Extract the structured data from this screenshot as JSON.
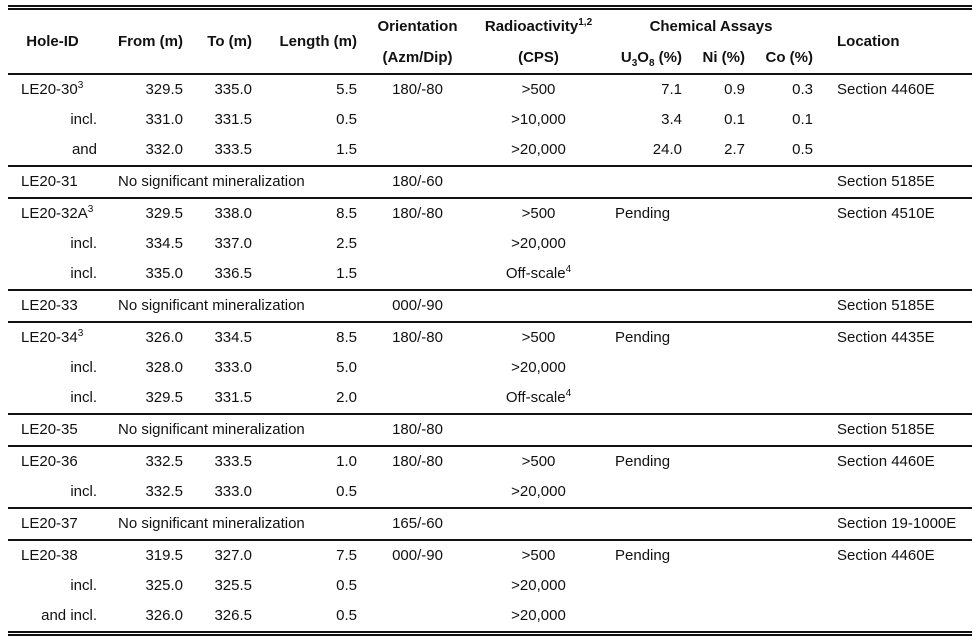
{
  "colors": {
    "background": "#ffffff",
    "text": "#111111",
    "rule": "#111111"
  },
  "table": {
    "headers": {
      "hole_id": "Hole-ID",
      "from": "From (m)",
      "to": "To (m)",
      "length": "Length (m)",
      "orientation_line1": "Orientation",
      "orientation_line2": "(Azm/Dip)",
      "radioactivity": "Radioactivity",
      "radioactivity_sup": "1,2",
      "radioactivity_line2": "(CPS)",
      "chemical_assays": "Chemical Assays",
      "u3o8_u": "U",
      "u3o8_sub3": "3",
      "u3o8_o": "O",
      "u3o8_sub8": "8",
      "u3o8_pct": " (%)",
      "ni": "Ni (%)",
      "co": "Co (%)",
      "location": "Location"
    },
    "rows": [
      {
        "hole": "LE20-30",
        "hole_sup": "3",
        "indent": false,
        "group_start": false,
        "nsm": "",
        "from": "329.5",
        "to": "335.0",
        "length": "5.5",
        "orientation": "180/-80",
        "cps": ">500",
        "cps_sup": "",
        "u3o8": "7.1",
        "pending": false,
        "ni": "0.9",
        "co": "0.3",
        "location": "Section 4460E"
      },
      {
        "hole": "incl.",
        "hole_sup": "",
        "indent": true,
        "group_start": false,
        "nsm": "",
        "from": "331.0",
        "to": "331.5",
        "length": "0.5",
        "orientation": "",
        "cps": ">10,000",
        "cps_sup": "",
        "u3o8": "3.4",
        "pending": false,
        "ni": "0.1",
        "co": "0.1",
        "location": ""
      },
      {
        "hole": "and",
        "hole_sup": "",
        "indent": true,
        "group_start": false,
        "nsm": "",
        "from": "332.0",
        "to": "333.5",
        "length": "1.5",
        "orientation": "",
        "cps": ">20,000",
        "cps_sup": "",
        "u3o8": "24.0",
        "pending": false,
        "ni": "2.7",
        "co": "0.5",
        "location": ""
      },
      {
        "hole": "LE20-31",
        "hole_sup": "",
        "indent": false,
        "group_start": true,
        "nsm": "No significant mineralization",
        "from": "",
        "to": "",
        "length": "",
        "orientation": "180/-60",
        "cps": "",
        "cps_sup": "",
        "u3o8": "",
        "pending": false,
        "ni": "",
        "co": "",
        "location": "Section 5185E"
      },
      {
        "hole": "LE20-32A",
        "hole_sup": "3",
        "indent": false,
        "group_start": true,
        "nsm": "",
        "from": "329.5",
        "to": "338.0",
        "length": "8.5",
        "orientation": "180/-80",
        "cps": ">500",
        "cps_sup": "",
        "u3o8": "Pending",
        "pending": true,
        "ni": "",
        "co": "",
        "location": "Section 4510E"
      },
      {
        "hole": "incl.",
        "hole_sup": "",
        "indent": true,
        "group_start": false,
        "nsm": "",
        "from": "334.5",
        "to": "337.0",
        "length": "2.5",
        "orientation": "",
        "cps": ">20,000",
        "cps_sup": "",
        "u3o8": "",
        "pending": false,
        "ni": "",
        "co": "",
        "location": ""
      },
      {
        "hole": "incl.",
        "hole_sup": "",
        "indent": true,
        "group_start": false,
        "nsm": "",
        "from": "335.0",
        "to": "336.5",
        "length": "1.5",
        "orientation": "",
        "cps": "Off-scale",
        "cps_sup": "4",
        "u3o8": "",
        "pending": false,
        "ni": "",
        "co": "",
        "location": ""
      },
      {
        "hole": "LE20-33",
        "hole_sup": "",
        "indent": false,
        "group_start": true,
        "nsm": "No significant mineralization",
        "from": "",
        "to": "",
        "length": "",
        "orientation": "000/-90",
        "cps": "",
        "cps_sup": "",
        "u3o8": "",
        "pending": false,
        "ni": "",
        "co": "",
        "location": "Section 5185E"
      },
      {
        "hole": "LE20-34",
        "hole_sup": "3",
        "indent": false,
        "group_start": true,
        "nsm": "",
        "from": "326.0",
        "to": "334.5",
        "length": "8.5",
        "orientation": "180/-80",
        "cps": ">500",
        "cps_sup": "",
        "u3o8": "Pending",
        "pending": true,
        "ni": "",
        "co": "",
        "location": "Section 4435E"
      },
      {
        "hole": "incl.",
        "hole_sup": "",
        "indent": true,
        "group_start": false,
        "nsm": "",
        "from": "328.0",
        "to": "333.0",
        "length": "5.0",
        "orientation": "",
        "cps": ">20,000",
        "cps_sup": "",
        "u3o8": "",
        "pending": false,
        "ni": "",
        "co": "",
        "location": ""
      },
      {
        "hole": "incl.",
        "hole_sup": "",
        "indent": true,
        "group_start": false,
        "nsm": "",
        "from": "329.5",
        "to": "331.5",
        "length": "2.0",
        "orientation": "",
        "cps": "Off-scale",
        "cps_sup": "4",
        "u3o8": "",
        "pending": false,
        "ni": "",
        "co": "",
        "location": ""
      },
      {
        "hole": "LE20-35",
        "hole_sup": "",
        "indent": false,
        "group_start": true,
        "nsm": "No significant mineralization",
        "from": "",
        "to": "",
        "length": "",
        "orientation": "180/-80",
        "cps": "",
        "cps_sup": "",
        "u3o8": "",
        "pending": false,
        "ni": "",
        "co": "",
        "location": "Section 5185E"
      },
      {
        "hole": "LE20-36",
        "hole_sup": "",
        "indent": false,
        "group_start": true,
        "nsm": "",
        "from": "332.5",
        "to": "333.5",
        "length": "1.0",
        "orientation": "180/-80",
        "cps": ">500",
        "cps_sup": "",
        "u3o8": "Pending",
        "pending": true,
        "ni": "",
        "co": "",
        "location": "Section 4460E"
      },
      {
        "hole": "incl.",
        "hole_sup": "",
        "indent": true,
        "group_start": false,
        "nsm": "",
        "from": "332.5",
        "to": "333.0",
        "length": "0.5",
        "orientation": "",
        "cps": ">20,000",
        "cps_sup": "",
        "u3o8": "",
        "pending": false,
        "ni": "",
        "co": "",
        "location": ""
      },
      {
        "hole": "LE20-37",
        "hole_sup": "",
        "indent": false,
        "group_start": true,
        "nsm": "No significant mineralization",
        "from": "",
        "to": "",
        "length": "",
        "orientation": "165/-60",
        "cps": "",
        "cps_sup": "",
        "u3o8": "",
        "pending": false,
        "ni": "",
        "co": "",
        "location": "Section 19-1000E"
      },
      {
        "hole": "LE20-38",
        "hole_sup": "",
        "indent": false,
        "group_start": true,
        "nsm": "",
        "from": "319.5",
        "to": "327.0",
        "length": "7.5",
        "orientation": "000/-90",
        "cps": ">500",
        "cps_sup": "",
        "u3o8": "Pending",
        "pending": true,
        "ni": "",
        "co": "",
        "location": "Section 4460E"
      },
      {
        "hole": "incl.",
        "hole_sup": "",
        "indent": true,
        "group_start": false,
        "nsm": "",
        "from": "325.0",
        "to": "325.5",
        "length": "0.5",
        "orientation": "",
        "cps": ">20,000",
        "cps_sup": "",
        "u3o8": "",
        "pending": false,
        "ni": "",
        "co": "",
        "location": ""
      },
      {
        "hole": "and incl.",
        "hole_sup": "",
        "indent": true,
        "group_start": false,
        "nsm": "",
        "from": "326.0",
        "to": "326.5",
        "length": "0.5",
        "orientation": "",
        "cps": ">20,000",
        "cps_sup": "",
        "u3o8": "",
        "pending": false,
        "ni": "",
        "co": "",
        "location": ""
      }
    ]
  }
}
